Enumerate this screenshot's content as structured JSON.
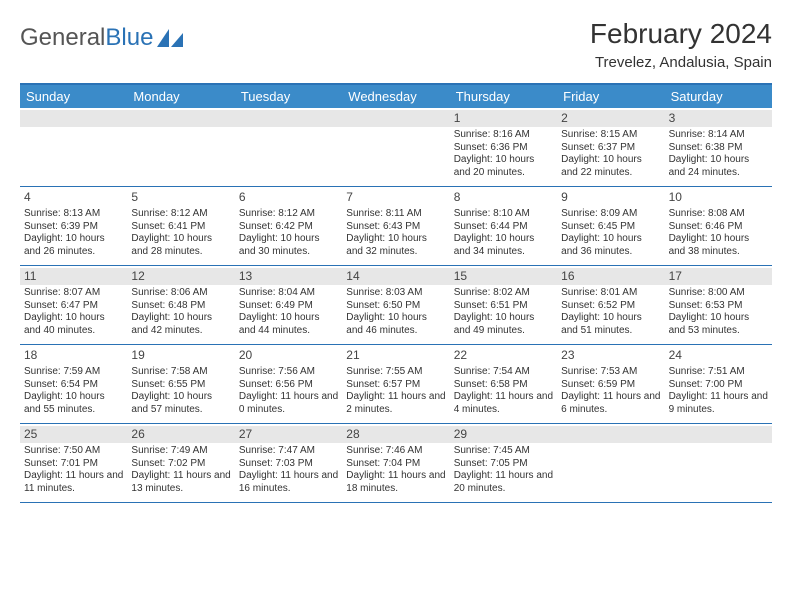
{
  "brand": {
    "part1": "General",
    "part2": "Blue"
  },
  "title": "February 2024",
  "location": "Trevelez, Andalusia, Spain",
  "colors": {
    "header_bg": "#3b8bc9",
    "rule": "#2a72b5",
    "alt_band": "#e7e7e7",
    "text": "#333333"
  },
  "day_headers": [
    "Sunday",
    "Monday",
    "Tuesday",
    "Wednesday",
    "Thursday",
    "Friday",
    "Saturday"
  ],
  "weeks": [
    [
      null,
      null,
      null,
      null,
      {
        "d": "1",
        "sr": "8:16 AM",
        "ss": "6:36 PM",
        "dl": "10 hours and 20 minutes."
      },
      {
        "d": "2",
        "sr": "8:15 AM",
        "ss": "6:37 PM",
        "dl": "10 hours and 22 minutes."
      },
      {
        "d": "3",
        "sr": "8:14 AM",
        "ss": "6:38 PM",
        "dl": "10 hours and 24 minutes."
      }
    ],
    [
      {
        "d": "4",
        "sr": "8:13 AM",
        "ss": "6:39 PM",
        "dl": "10 hours and 26 minutes."
      },
      {
        "d": "5",
        "sr": "8:12 AM",
        "ss": "6:41 PM",
        "dl": "10 hours and 28 minutes."
      },
      {
        "d": "6",
        "sr": "8:12 AM",
        "ss": "6:42 PM",
        "dl": "10 hours and 30 minutes."
      },
      {
        "d": "7",
        "sr": "8:11 AM",
        "ss": "6:43 PM",
        "dl": "10 hours and 32 minutes."
      },
      {
        "d": "8",
        "sr": "8:10 AM",
        "ss": "6:44 PM",
        "dl": "10 hours and 34 minutes."
      },
      {
        "d": "9",
        "sr": "8:09 AM",
        "ss": "6:45 PM",
        "dl": "10 hours and 36 minutes."
      },
      {
        "d": "10",
        "sr": "8:08 AM",
        "ss": "6:46 PM",
        "dl": "10 hours and 38 minutes."
      }
    ],
    [
      {
        "d": "11",
        "sr": "8:07 AM",
        "ss": "6:47 PM",
        "dl": "10 hours and 40 minutes."
      },
      {
        "d": "12",
        "sr": "8:06 AM",
        "ss": "6:48 PM",
        "dl": "10 hours and 42 minutes."
      },
      {
        "d": "13",
        "sr": "8:04 AM",
        "ss": "6:49 PM",
        "dl": "10 hours and 44 minutes."
      },
      {
        "d": "14",
        "sr": "8:03 AM",
        "ss": "6:50 PM",
        "dl": "10 hours and 46 minutes."
      },
      {
        "d": "15",
        "sr": "8:02 AM",
        "ss": "6:51 PM",
        "dl": "10 hours and 49 minutes."
      },
      {
        "d": "16",
        "sr": "8:01 AM",
        "ss": "6:52 PM",
        "dl": "10 hours and 51 minutes."
      },
      {
        "d": "17",
        "sr": "8:00 AM",
        "ss": "6:53 PM",
        "dl": "10 hours and 53 minutes."
      }
    ],
    [
      {
        "d": "18",
        "sr": "7:59 AM",
        "ss": "6:54 PM",
        "dl": "10 hours and 55 minutes."
      },
      {
        "d": "19",
        "sr": "7:58 AM",
        "ss": "6:55 PM",
        "dl": "10 hours and 57 minutes."
      },
      {
        "d": "20",
        "sr": "7:56 AM",
        "ss": "6:56 PM",
        "dl": "11 hours and 0 minutes."
      },
      {
        "d": "21",
        "sr": "7:55 AM",
        "ss": "6:57 PM",
        "dl": "11 hours and 2 minutes."
      },
      {
        "d": "22",
        "sr": "7:54 AM",
        "ss": "6:58 PM",
        "dl": "11 hours and 4 minutes."
      },
      {
        "d": "23",
        "sr": "7:53 AM",
        "ss": "6:59 PM",
        "dl": "11 hours and 6 minutes."
      },
      {
        "d": "24",
        "sr": "7:51 AM",
        "ss": "7:00 PM",
        "dl": "11 hours and 9 minutes."
      }
    ],
    [
      {
        "d": "25",
        "sr": "7:50 AM",
        "ss": "7:01 PM",
        "dl": "11 hours and 11 minutes."
      },
      {
        "d": "26",
        "sr": "7:49 AM",
        "ss": "7:02 PM",
        "dl": "11 hours and 13 minutes."
      },
      {
        "d": "27",
        "sr": "7:47 AM",
        "ss": "7:03 PM",
        "dl": "11 hours and 16 minutes."
      },
      {
        "d": "28",
        "sr": "7:46 AM",
        "ss": "7:04 PM",
        "dl": "11 hours and 18 minutes."
      },
      {
        "d": "29",
        "sr": "7:45 AM",
        "ss": "7:05 PM",
        "dl": "11 hours and 20 minutes."
      },
      null,
      null
    ]
  ],
  "labels": {
    "sunrise": "Sunrise:",
    "sunset": "Sunset:",
    "daylight": "Daylight:"
  }
}
